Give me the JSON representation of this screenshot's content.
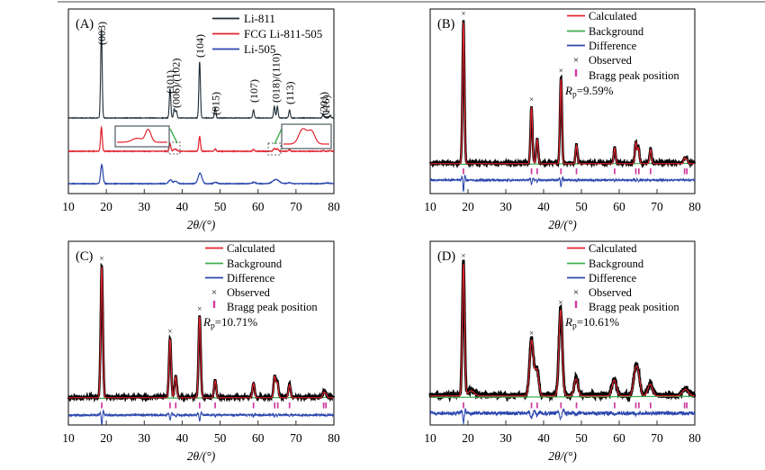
{
  "page": {
    "background": "#ffffff",
    "top_rule_color": "#4a4a4a"
  },
  "colors": {
    "axis": "#2f2f2f",
    "pattern_black": "#1b2a33",
    "calculated_red": "#e2242f",
    "background_green": "#3fae4e",
    "difference_blue": "#2b46ad",
    "observed_black": "#050505",
    "bragg_magenta": "#cf3a9e"
  },
  "chart_data": [
    {
      "type": "line",
      "panel_label": "(A)",
      "xlabel": "2θ/(°)",
      "ylabel": "",
      "xlim": [
        10,
        80
      ],
      "x_ticks": [
        10,
        20,
        30,
        40,
        50,
        60,
        70,
        80
      ],
      "grid": false,
      "legend_position": "top-right",
      "legend": [
        {
          "label": "Li-811",
          "color": "#1b2a33",
          "marker": "line"
        },
        {
          "label": "FCG Li-811-505",
          "color": "#e2242f",
          "marker": "line"
        },
        {
          "label": "Li-505",
          "color": "#2b46ad",
          "marker": "line"
        }
      ],
      "peak_labels": [
        {
          "label": "(003)",
          "two_theta": 18.7
        },
        {
          "label": "(101)",
          "two_theta": 36.8
        },
        {
          "label": "(006)/(102)",
          "two_theta": 38.3
        },
        {
          "label": "(104)",
          "two_theta": 44.6
        },
        {
          "label": "(015)",
          "two_theta": 48.7
        },
        {
          "label": "(107)",
          "two_theta": 58.8
        },
        {
          "label": "(018)/(110)",
          "two_theta": 64.6
        },
        {
          "label": "(113)",
          "two_theta": 68.3
        },
        {
          "label": "(201)",
          "two_theta": 77.2
        },
        {
          "label": "(116)",
          "two_theta": 79.0
        }
      ],
      "series": [
        {
          "name": "Li-811",
          "color": "#1b2a33",
          "peak_width_deg": 0.2,
          "peaks": [
            [
              18.7,
              100
            ],
            [
              36.8,
              33
            ],
            [
              37.9,
              10
            ],
            [
              38.45,
              8
            ],
            [
              44.6,
              63
            ],
            [
              48.7,
              11
            ],
            [
              58.8,
              9
            ],
            [
              64.3,
              13
            ],
            [
              65.1,
              13
            ],
            [
              68.3,
              9
            ],
            [
              77.2,
              4
            ],
            [
              79.0,
              3
            ]
          ]
        },
        {
          "name": "FCG Li-811-505",
          "color": "#e2242f",
          "peak_width_deg": 0.22,
          "peaks": [
            [
              18.7,
              100
            ],
            [
              36.8,
              30
            ],
            [
              37.9,
              7,
              0.3
            ],
            [
              38.45,
              6,
              0.3
            ],
            [
              44.6,
              60
            ],
            [
              48.7,
              9
            ],
            [
              58.8,
              8
            ],
            [
              64.3,
              11,
              0.3
            ],
            [
              65.1,
              9,
              0.3
            ],
            [
              68.3,
              7
            ],
            [
              77.2,
              3
            ],
            [
              79.0,
              3
            ]
          ]
        },
        {
          "name": "Li-505",
          "color": "#2b46ad",
          "peak_width_deg": 0.35,
          "peaks": [
            [
              18.8,
              100,
              0.3
            ],
            [
              36.9,
              20,
              0.45
            ],
            [
              38.3,
              12,
              0.45
            ],
            [
              44.7,
              55,
              0.5
            ],
            [
              48.8,
              7,
              0.45
            ],
            [
              58.9,
              7,
              0.5
            ],
            [
              64.7,
              22,
              0.85
            ],
            [
              68.3,
              5,
              0.5
            ],
            [
              78.2,
              4,
              0.7
            ]
          ]
        }
      ],
      "insets": [
        {
          "series": "FCG Li-811-505",
          "region_two_theta": [
            37.2,
            39.3
          ],
          "shape_peaks": [
            [
              0.4,
              0.32,
              0.1
            ],
            [
              0.62,
              1.0,
              0.055
            ]
          ]
        },
        {
          "series": "FCG Li-811-505",
          "region_two_theta": [
            63.8,
            66.0
          ],
          "shape_peaks": [
            [
              0.42,
              0.92,
              0.085
            ],
            [
              0.61,
              0.78,
              0.075
            ]
          ]
        }
      ]
    },
    {
      "type": "line",
      "panel_label": "(B)",
      "xlabel": "2θ/(°)",
      "ylabel": "",
      "xlim": [
        10,
        80
      ],
      "x_ticks": [
        10,
        20,
        30,
        40,
        50,
        60,
        70,
        80
      ],
      "grid": false,
      "legend_position": "top-right",
      "legend": [
        {
          "label": "Calculated",
          "color": "#e2242f",
          "marker": "line"
        },
        {
          "label": "Background",
          "color": "#3fae4e",
          "marker": "line"
        },
        {
          "label": "Difference",
          "color": "#2b46ad",
          "marker": "line"
        },
        {
          "label": "Observed",
          "color": "#050505",
          "marker": "cross"
        },
        {
          "label": "Bragg peak position",
          "color": "#cf3a9e",
          "marker": "tick"
        }
      ],
      "rp": {
        "symbol": "R",
        "subscript": "p",
        "value": "=9.59%"
      },
      "peak_width_deg": 0.25,
      "peaks": [
        [
          18.8,
          100
        ],
        [
          36.8,
          40
        ],
        [
          38.3,
          17
        ],
        [
          44.6,
          60
        ],
        [
          48.7,
          13
        ],
        [
          58.8,
          11
        ],
        [
          64.4,
          15
        ],
        [
          65.1,
          11
        ],
        [
          68.3,
          10
        ],
        [
          77.3,
          4
        ],
        [
          77.9,
          3
        ]
      ],
      "bragg_positions": [
        18.8,
        36.8,
        38.3,
        44.6,
        48.7,
        58.8,
        64.4,
        65.2,
        68.3,
        77.3,
        77.9
      ]
    },
    {
      "type": "line",
      "panel_label": "(C)",
      "xlabel": "2θ/(°)",
      "ylabel": "",
      "xlim": [
        10,
        80
      ],
      "x_ticks": [
        10,
        20,
        30,
        40,
        50,
        60,
        70,
        80
      ],
      "grid": false,
      "legend_position": "top-right",
      "legend": [
        {
          "label": "Calculated",
          "color": "#e2242f",
          "marker": "line"
        },
        {
          "label": "Background",
          "color": "#3fae4e",
          "marker": "line"
        },
        {
          "label": "Difference",
          "color": "#2b46ad",
          "marker": "line"
        },
        {
          "label": "Observed",
          "color": "#050505",
          "marker": "cross"
        },
        {
          "label": "Bragg peak position",
          "color": "#cf3a9e",
          "marker": "tick"
        }
      ],
      "rp": {
        "symbol": "R",
        "subscript": "p",
        "value": "=10.71%"
      },
      "peak_width_deg": 0.28,
      "peaks": [
        [
          18.8,
          100
        ],
        [
          36.8,
          45
        ],
        [
          38.3,
          16
        ],
        [
          44.6,
          62
        ],
        [
          48.7,
          13
        ],
        [
          58.8,
          11
        ],
        [
          64.4,
          16
        ],
        [
          65.1,
          11
        ],
        [
          68.3,
          10
        ],
        [
          77.3,
          4
        ],
        [
          77.9,
          3
        ]
      ],
      "bragg_positions": [
        18.8,
        36.8,
        38.3,
        44.6,
        48.7,
        58.8,
        64.4,
        65.2,
        68.3,
        77.3,
        77.9
      ]
    },
    {
      "type": "line",
      "panel_label": "(D)",
      "xlabel": "2θ/(°)",
      "ylabel": "",
      "xlim": [
        10,
        80
      ],
      "x_ticks": [
        10,
        20,
        30,
        40,
        50,
        60,
        70,
        80
      ],
      "grid": false,
      "legend_position": "top-right",
      "legend": [
        {
          "label": "Calculated",
          "color": "#e2242f",
          "marker": "line"
        },
        {
          "label": "Background",
          "color": "#3fae4e",
          "marker": "line"
        },
        {
          "label": "Difference",
          "color": "#2b46ad",
          "marker": "line"
        },
        {
          "label": "Observed",
          "color": "#050505",
          "marker": "cross"
        },
        {
          "label": "Bragg peak position",
          "color": "#cf3a9e",
          "marker": "tick"
        }
      ],
      "rp": {
        "symbol": "R",
        "subscript": "p",
        "value": "=10.61%"
      },
      "peak_width_deg": 0.5,
      "peaks": [
        [
          18.8,
          100,
          0.3
        ],
        [
          20.8,
          4,
          0.8
        ],
        [
          36.8,
          42
        ],
        [
          38.2,
          20
        ],
        [
          44.5,
          65,
          0.45
        ],
        [
          48.6,
          13
        ],
        [
          58.7,
          12,
          0.6
        ],
        [
          64.3,
          18,
          0.55
        ],
        [
          65.1,
          12
        ],
        [
          68.2,
          9,
          0.6
        ],
        [
          77.5,
          5,
          0.8
        ]
      ],
      "bragg_positions": [
        18.8,
        36.8,
        38.3,
        44.6,
        48.7,
        58.8,
        64.4,
        65.2,
        68.3,
        77.3,
        77.9
      ]
    }
  ]
}
